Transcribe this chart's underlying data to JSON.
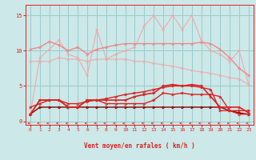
{
  "x": [
    0,
    1,
    2,
    3,
    4,
    5,
    6,
    7,
    8,
    9,
    10,
    11,
    12,
    13,
    14,
    15,
    16,
    17,
    18,
    19,
    20,
    21,
    22,
    23
  ],
  "line_spike": [
    1.0,
    9.0,
    10.2,
    11.5,
    9.5,
    9.0,
    6.5,
    13.0,
    8.8,
    9.5,
    10.0,
    10.5,
    13.5,
    15.0,
    13.0,
    15.0,
    13.0,
    15.0,
    11.5,
    10.0,
    9.5,
    8.5,
    10.0,
    5.2
  ],
  "line_smooth_high": [
    10.2,
    10.5,
    11.3,
    10.8,
    10.0,
    10.5,
    9.5,
    10.2,
    10.5,
    10.8,
    11.0,
    11.0,
    11.0,
    11.0,
    11.0,
    11.0,
    11.0,
    11.0,
    11.2,
    11.0,
    10.2,
    9.0,
    7.5,
    6.5
  ],
  "line_trend_down": [
    8.5,
    8.5,
    8.5,
    9.0,
    8.8,
    8.8,
    8.5,
    8.8,
    8.8,
    8.8,
    8.8,
    8.5,
    8.5,
    8.2,
    8.0,
    7.8,
    7.5,
    7.2,
    7.0,
    6.8,
    6.5,
    6.2,
    6.0,
    5.2
  ],
  "line_dark_low": [
    1.0,
    2.0,
    2.0,
    2.0,
    2.0,
    2.0,
    2.0,
    2.0,
    2.0,
    2.0,
    2.0,
    2.0,
    2.0,
    2.0,
    2.0,
    2.0,
    2.0,
    2.0,
    2.0,
    2.0,
    2.0,
    1.5,
    1.2,
    1.0
  ],
  "line_mid1": [
    1.0,
    3.0,
    3.0,
    3.0,
    2.0,
    2.0,
    3.0,
    3.0,
    2.5,
    2.5,
    2.5,
    2.5,
    2.5,
    3.0,
    4.0,
    3.8,
    4.0,
    3.8,
    3.8,
    3.8,
    3.5,
    1.5,
    1.5,
    1.5
  ],
  "line_mid2": [
    1.0,
    3.0,
    3.0,
    3.0,
    2.0,
    2.0,
    3.0,
    3.0,
    3.0,
    3.0,
    3.0,
    3.5,
    3.8,
    4.0,
    5.0,
    5.2,
    5.0,
    5.2,
    5.0,
    3.5,
    2.0,
    2.0,
    2.0,
    1.2
  ],
  "line_step": [
    2.0,
    2.5,
    3.0,
    3.0,
    2.5,
    2.5,
    2.8,
    3.0,
    3.2,
    3.5,
    3.8,
    4.0,
    4.2,
    4.5,
    4.8,
    5.0,
    5.0,
    5.0,
    4.8,
    4.5,
    1.5,
    1.5,
    1.0,
    1.0
  ],
  "background": "#cce8e8",
  "grid_color": "#99cccc",
  "color_lightest": "#f0aaaa",
  "color_light": "#ee8888",
  "color_mid": "#dd2222",
  "color_dark": "#880000",
  "xlabel": "Vent moyen/en rafales ( km/h )",
  "yticks": [
    0,
    5,
    10,
    15
  ],
  "xticks": [
    0,
    1,
    2,
    3,
    4,
    5,
    6,
    7,
    8,
    9,
    10,
    11,
    12,
    13,
    14,
    15,
    16,
    17,
    18,
    19,
    20,
    21,
    22,
    23
  ]
}
